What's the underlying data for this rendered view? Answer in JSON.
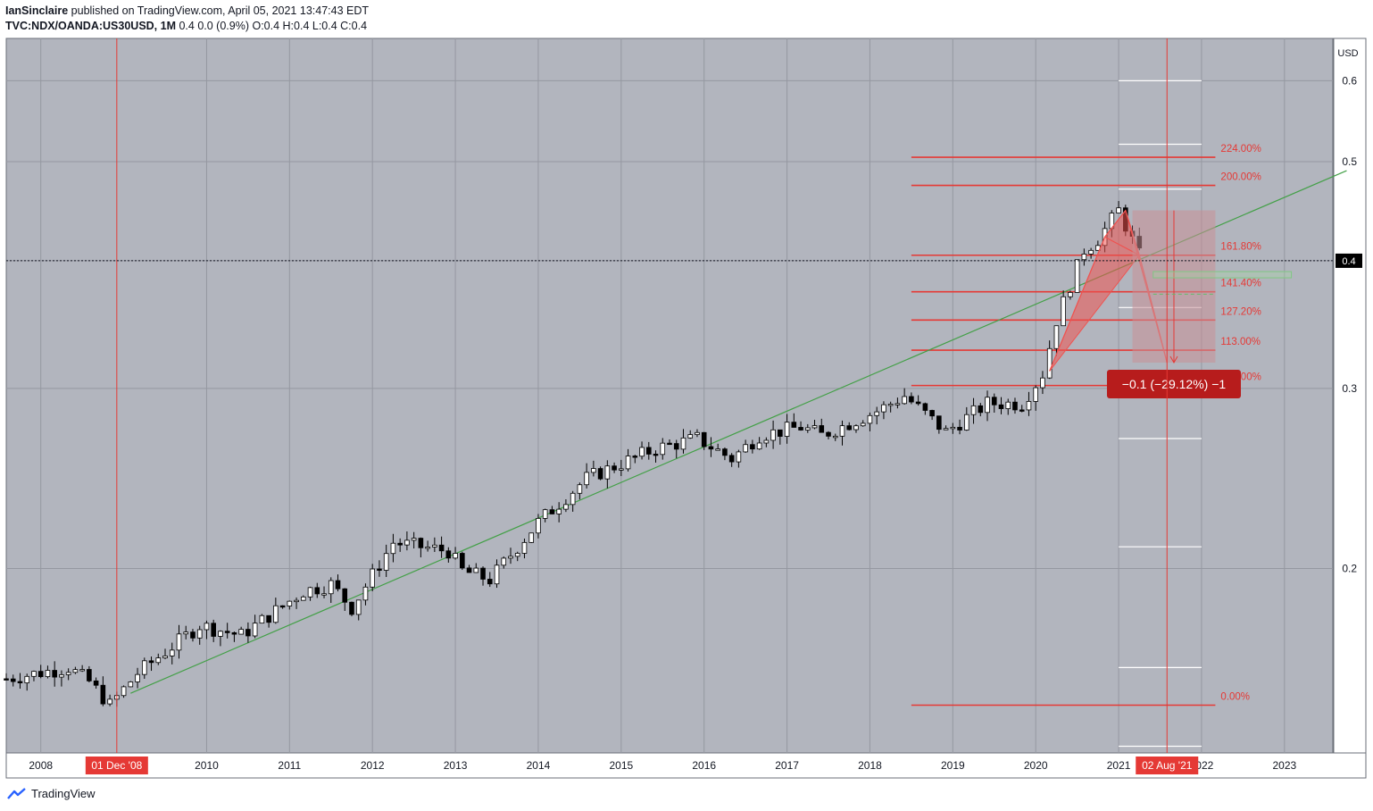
{
  "header": {
    "author": "IanSinclaire",
    "published_text": "published on TradingView.com, April 05, 2021 13:47:43 EDT",
    "symbol": "TVC:NDX/OANDA:US30USD, 1M",
    "quote": "0.4 0.0 (0.9%) O:0.4 H:0.4 L:0.4 C:0.4"
  },
  "footer": {
    "brand": "TradingView"
  },
  "colors": {
    "plot_bg": "#b2b5be",
    "fib_line": "#e53935",
    "trendline": "#43a047",
    "pattern_fill": "#ef5350",
    "measure_fill": "#c98f95",
    "candle_up": "#ffffff",
    "candle_down": "#000000",
    "grid": "#9598a1"
  },
  "chart_data": {
    "type": "candlestick",
    "title": "TVC:NDX/OANDA:US30USD, 1M",
    "currency": "USD",
    "y_scale": "log",
    "ylim": [
      0.132,
      0.66
    ],
    "y_ticks": [
      0.6,
      0.5,
      0.4,
      0.3,
      0.2
    ],
    "x_tick_labels": [
      "2008",
      "2010",
      "2011",
      "2012",
      "2013",
      "2014",
      "2015",
      "2016",
      "2017",
      "2018",
      "2019",
      "2020",
      "2021",
      "2022",
      "2023"
    ],
    "x_range": [
      "2007-08",
      "2023-08"
    ],
    "last_price": {
      "label": "0.4",
      "value": 0.4
    },
    "vertical_markers": [
      {
        "label": "01 Dec '08",
        "date": "2008-12"
      },
      {
        "label": "02 Aug '21",
        "date": "2021-08"
      }
    ],
    "fib_levels": [
      {
        "label": "224.00%",
        "value": 0.505
      },
      {
        "label": "200.00%",
        "value": 0.474
      },
      {
        "label": "161.80%",
        "value": 0.405
      },
      {
        "label": "141.40%",
        "value": 0.373
      },
      {
        "label": "127.20%",
        "value": 0.35
      },
      {
        "label": "113.00%",
        "value": 0.327
      },
      {
        "label": "100.00%",
        "value": 0.302
      },
      {
        "label": "0.00%",
        "value": 0.147
      }
    ],
    "fib_range": [
      "2018-07",
      "2022-03"
    ],
    "trendline": {
      "from": {
        "date": "2009-02",
        "value": 0.151
      },
      "to": {
        "date": "2023-10",
        "value": 0.49
      }
    },
    "pattern_points": [
      {
        "date": "2020-03",
        "value": 0.312
      },
      {
        "date": "2020-11",
        "value": 0.422
      },
      {
        "date": "2021-02",
        "value": 0.448
      },
      {
        "date": "2021-04",
        "value": 0.405
      },
      {
        "date": "2021-08",
        "value": 0.318
      }
    ],
    "measure": {
      "label": "−0.1 (−29.12%) −1",
      "from": {
        "date": "2021-03",
        "value": 0.448
      },
      "to": {
        "date": "2022-03",
        "value": 0.318
      }
    },
    "candles_control_points": [
      [
        "2007-08",
        0.156
      ],
      [
        "2008-05",
        0.16
      ],
      [
        "2008-08",
        0.155
      ],
      [
        "2008-11",
        0.147
      ],
      [
        "2009-03",
        0.158
      ],
      [
        "2009-12",
        0.176
      ],
      [
        "2010-06",
        0.172
      ],
      [
        "2011-03",
        0.19
      ],
      [
        "2011-07",
        0.193
      ],
      [
        "2011-10",
        0.183
      ],
      [
        "2012-04",
        0.212
      ],
      [
        "2012-12",
        0.208
      ],
      [
        "2013-02",
        0.199
      ],
      [
        "2013-06",
        0.195
      ],
      [
        "2014-01",
        0.222
      ],
      [
        "2014-08",
        0.245
      ],
      [
        "2015-06",
        0.262
      ],
      [
        "2015-12",
        0.268
      ],
      [
        "2016-05",
        0.256
      ],
      [
        "2016-09",
        0.27
      ],
      [
        "2017-03",
        0.275
      ],
      [
        "2017-06",
        0.27
      ],
      [
        "2018-02",
        0.285
      ],
      [
        "2018-06",
        0.295
      ],
      [
        "2018-12",
        0.272
      ],
      [
        "2019-06",
        0.29
      ],
      [
        "2019-11",
        0.29
      ],
      [
        "2020-02",
        0.31
      ],
      [
        "2020-04",
        0.35
      ],
      [
        "2020-08",
        0.41
      ],
      [
        "2020-10",
        0.42
      ],
      [
        "2021-01",
        0.448
      ],
      [
        "2021-04",
        0.405
      ]
    ]
  }
}
